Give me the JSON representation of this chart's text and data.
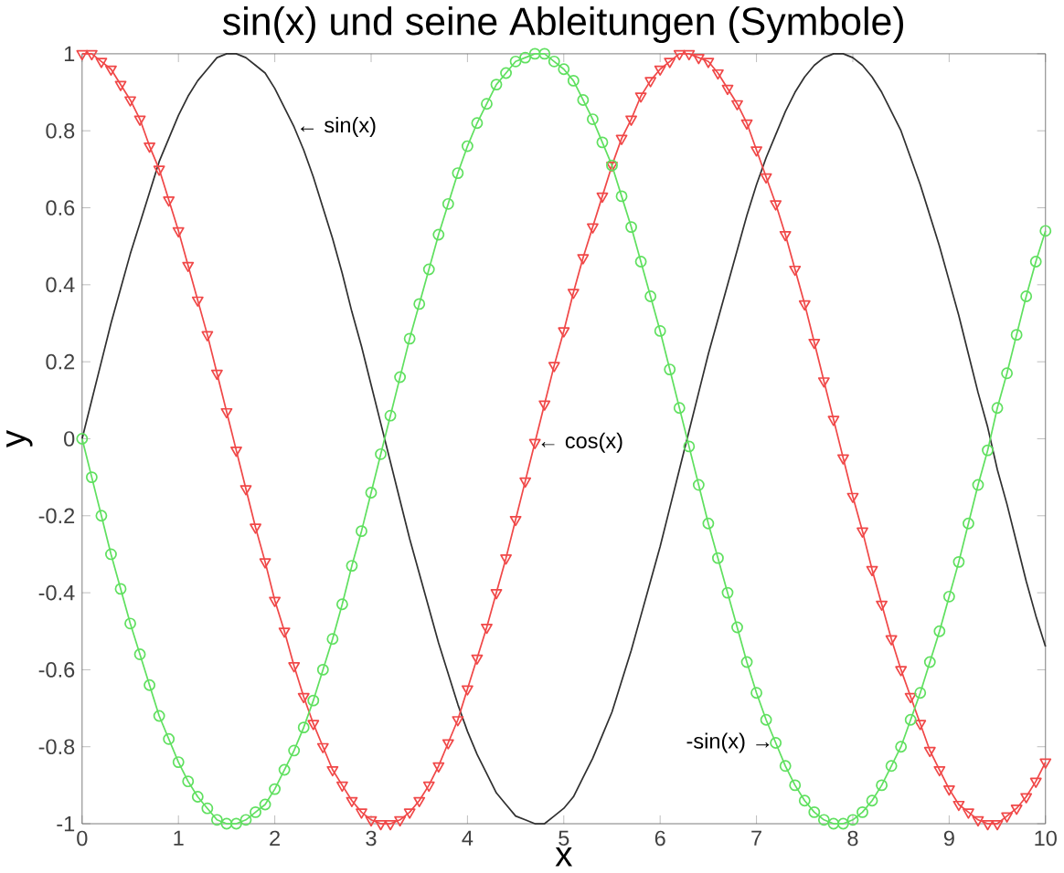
{
  "chart_data": {
    "type": "line",
    "title": "sin(x) und seine Ableitungen (Symbole)",
    "xlabel": "x",
    "ylabel": "y",
    "x": [
      0,
      0.1,
      0.2,
      0.3,
      0.4,
      0.5,
      0.6,
      0.7,
      0.8,
      0.9,
      1,
      1.1,
      1.2,
      1.3,
      1.4,
      1.5,
      1.6,
      1.7,
      1.8,
      1.9,
      2,
      2.1,
      2.2,
      2.3,
      2.4,
      2.5,
      2.6,
      2.7,
      2.8,
      2.9,
      3,
      3.1,
      3.2,
      3.3,
      3.4,
      3.5,
      3.6,
      3.7,
      3.8,
      3.9,
      4,
      4.1,
      4.2,
      4.3,
      4.4,
      4.5,
      4.6,
      4.7,
      4.8,
      4.9,
      5,
      5.1,
      5.2,
      5.3,
      5.4,
      5.5,
      5.6,
      5.7,
      5.8,
      5.9,
      6,
      6.1,
      6.2,
      6.3,
      6.4,
      6.5,
      6.6,
      6.7,
      6.8,
      6.9,
      7,
      7.1,
      7.2,
      7.3,
      7.4,
      7.5,
      7.6,
      7.7,
      7.8,
      7.9,
      8,
      8.1,
      8.2,
      8.3,
      8.4,
      8.5,
      8.6,
      8.7,
      8.8,
      8.9,
      9,
      9.1,
      9.2,
      9.3,
      9.4,
      9.5,
      9.6,
      9.7,
      9.8,
      9.9,
      10
    ],
    "series": [
      {
        "color": "#303030",
        "marker": "none",
        "values": [
          0,
          0.1,
          0.2,
          0.3,
          0.39,
          0.48,
          0.56,
          0.64,
          0.72,
          0.78,
          0.84,
          0.89,
          0.93,
          0.96,
          0.99,
          1,
          1,
          0.99,
          0.97,
          0.95,
          0.91,
          0.86,
          0.81,
          0.75,
          0.68,
          0.6,
          0.52,
          0.43,
          0.33,
          0.24,
          0.14,
          0.04,
          -0.06,
          -0.16,
          -0.26,
          -0.35,
          -0.44,
          -0.53,
          -0.61,
          -0.69,
          -0.76,
          -0.82,
          -0.87,
          -0.92,
          -0.95,
          -0.98,
          -0.99,
          -1,
          -1,
          -0.98,
          -0.96,
          -0.93,
          -0.88,
          -0.83,
          -0.77,
          -0.71,
          -0.63,
          -0.55,
          -0.46,
          -0.37,
          -0.28,
          -0.18,
          -0.08,
          0.02,
          0.12,
          0.22,
          0.31,
          0.4,
          0.49,
          0.58,
          0.66,
          0.73,
          0.79,
          0.85,
          0.9,
          0.94,
          0.97,
          0.99,
          1,
          1,
          0.99,
          0.97,
          0.94,
          0.9,
          0.85,
          0.8,
          0.73,
          0.66,
          0.58,
          0.5,
          0.41,
          0.32,
          0.22,
          0.12,
          0.03,
          -0.08,
          -0.17,
          -0.27,
          -0.37,
          -0.46,
          -0.54
        ]
      },
      {
        "color": "#f04848",
        "marker": "triangle",
        "values": [
          1,
          1,
          0.98,
          0.96,
          0.92,
          0.88,
          0.83,
          0.76,
          0.7,
          0.62,
          0.54,
          0.45,
          0.36,
          0.27,
          0.17,
          0.07,
          -0.03,
          -0.13,
          -0.23,
          -0.32,
          -0.42,
          -0.5,
          -0.59,
          -0.67,
          -0.74,
          -0.8,
          -0.86,
          -0.9,
          -0.94,
          -0.97,
          -0.99,
          -1,
          -1,
          -0.99,
          -0.97,
          -0.94,
          -0.9,
          -0.85,
          -0.79,
          -0.73,
          -0.65,
          -0.57,
          -0.49,
          -0.4,
          -0.31,
          -0.21,
          -0.11,
          -0.01,
          0.09,
          0.19,
          0.28,
          0.38,
          0.47,
          0.55,
          0.63,
          0.71,
          0.78,
          0.83,
          0.89,
          0.93,
          0.96,
          0.98,
          1,
          1,
          0.99,
          0.98,
          0.95,
          0.91,
          0.87,
          0.82,
          0.75,
          0.68,
          0.61,
          0.53,
          0.44,
          0.35,
          0.25,
          0.15,
          0.05,
          -0.05,
          -0.15,
          -0.24,
          -0.34,
          -0.43,
          -0.52,
          -0.6,
          -0.67,
          -0.74,
          -0.81,
          -0.86,
          -0.91,
          -0.95,
          -0.97,
          -0.99,
          -1,
          -1,
          -0.98,
          -0.96,
          -0.93,
          -0.89,
          -0.84
        ]
      },
      {
        "color": "#60e060",
        "marker": "circle",
        "values": [
          0,
          -0.1,
          -0.2,
          -0.3,
          -0.39,
          -0.48,
          -0.56,
          -0.64,
          -0.72,
          -0.78,
          -0.84,
          -0.89,
          -0.93,
          -0.96,
          -0.99,
          -1,
          -1,
          -0.99,
          -0.97,
          -0.95,
          -0.91,
          -0.86,
          -0.81,
          -0.75,
          -0.68,
          -0.6,
          -0.52,
          -0.43,
          -0.33,
          -0.24,
          -0.14,
          -0.04,
          0.06,
          0.16,
          0.26,
          0.35,
          0.44,
          0.53,
          0.61,
          0.69,
          0.76,
          0.82,
          0.87,
          0.92,
          0.95,
          0.98,
          0.99,
          1,
          1,
          0.98,
          0.96,
          0.93,
          0.88,
          0.83,
          0.77,
          0.71,
          0.63,
          0.55,
          0.46,
          0.37,
          0.28,
          0.18,
          0.08,
          -0.02,
          -0.12,
          -0.22,
          -0.31,
          -0.4,
          -0.49,
          -0.58,
          -0.66,
          -0.73,
          -0.79,
          -0.85,
          -0.9,
          -0.94,
          -0.97,
          -0.99,
          -1,
          -1,
          -0.99,
          -0.97,
          -0.94,
          -0.9,
          -0.85,
          -0.8,
          -0.73,
          -0.66,
          -0.58,
          -0.5,
          -0.41,
          -0.32,
          -0.22,
          -0.12,
          -0.03,
          0.08,
          0.17,
          0.27,
          0.37,
          0.46,
          0.54
        ]
      }
    ],
    "xlim": [
      0,
      10
    ],
    "ylim": [
      -1,
      1
    ],
    "xticks": [
      0,
      1,
      2,
      3,
      4,
      5,
      6,
      7,
      8,
      9,
      10
    ],
    "yticks": [
      -1,
      -0.8,
      -0.6,
      -0.4,
      -0.2,
      0,
      0.2,
      0.4,
      0.6,
      0.8,
      1
    ],
    "annotations": [
      {
        "text": "← sin(x)",
        "x": 2.2,
        "y": 0.81
      },
      {
        "text": "← cos(x)",
        "x": 4.7,
        "y": -0.01
      },
      {
        "text": "-sin(x) →",
        "x": 7.2,
        "y": -0.79
      }
    ]
  }
}
